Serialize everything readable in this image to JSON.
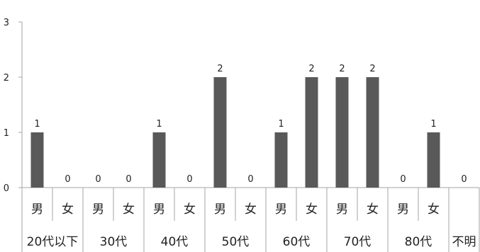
{
  "chart_data": {
    "type": "bar",
    "title": "",
    "xlabel": "",
    "ylabel": "",
    "ylim": [
      0,
      3
    ],
    "yticks": [
      0,
      1,
      2,
      3
    ],
    "grid": false,
    "legend": "none",
    "bar_color": "#595959",
    "axis_color": "#a6a6a6",
    "groups": [
      {
        "label": "20代以下",
        "categories": [
          "男",
          "女"
        ],
        "values": [
          1,
          0
        ]
      },
      {
        "label": "30代",
        "categories": [
          "男",
          "女"
        ],
        "values": [
          0,
          0
        ]
      },
      {
        "label": "40代",
        "categories": [
          "男",
          "女"
        ],
        "values": [
          1,
          0
        ]
      },
      {
        "label": "50代",
        "categories": [
          "男",
          "女"
        ],
        "values": [
          2,
          0
        ]
      },
      {
        "label": "60代",
        "categories": [
          "男",
          "女"
        ],
        "values": [
          1,
          2
        ]
      },
      {
        "label": "70代",
        "categories": [
          "男",
          "女"
        ],
        "values": [
          2,
          2
        ]
      },
      {
        "label": "80代",
        "categories": [
          "男",
          "女"
        ],
        "values": [
          0,
          1
        ]
      },
      {
        "label": "不明",
        "categories": [
          ""
        ],
        "values": [
          0
        ]
      }
    ]
  }
}
